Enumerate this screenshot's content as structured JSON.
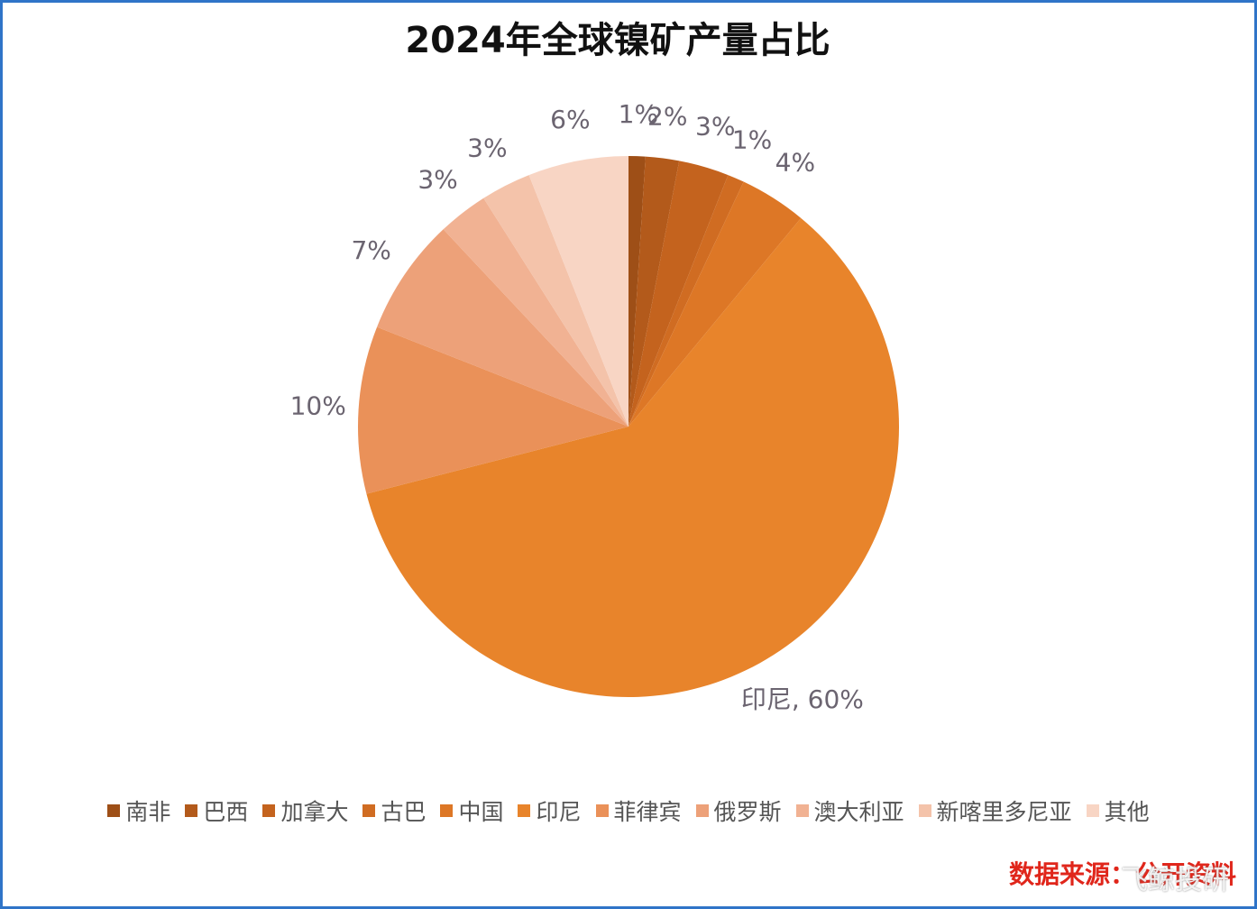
{
  "chart_data": {
    "type": "pie",
    "title": "2024年全球镍矿产量占比",
    "categories": [
      "南非",
      "巴西",
      "加拿大",
      "古巴",
      "中国",
      "印尼",
      "菲律宾",
      "俄罗斯",
      "澳大利亚",
      "新喀里多尼亚",
      "其他"
    ],
    "values": [
      1,
      2,
      3,
      1,
      4,
      60,
      10,
      7,
      3,
      3,
      6
    ],
    "value_labels": [
      "1%",
      "2%",
      "3%",
      "1%",
      "4%",
      "印尼, 60%",
      "10%",
      "7%",
      "3%",
      "3%",
      "6%"
    ],
    "colors": [
      "#9e4f17",
      "#b35a1b",
      "#c4631e",
      "#d06c22",
      "#dd7726",
      "#e8842b",
      "#ea9159",
      "#eda179",
      "#f1b293",
      "#f4c3aa",
      "#f8d5c4"
    ],
    "legend": "bottom",
    "source": "数据来源：公开资料",
    "watermark": "飞鲸投研"
  }
}
